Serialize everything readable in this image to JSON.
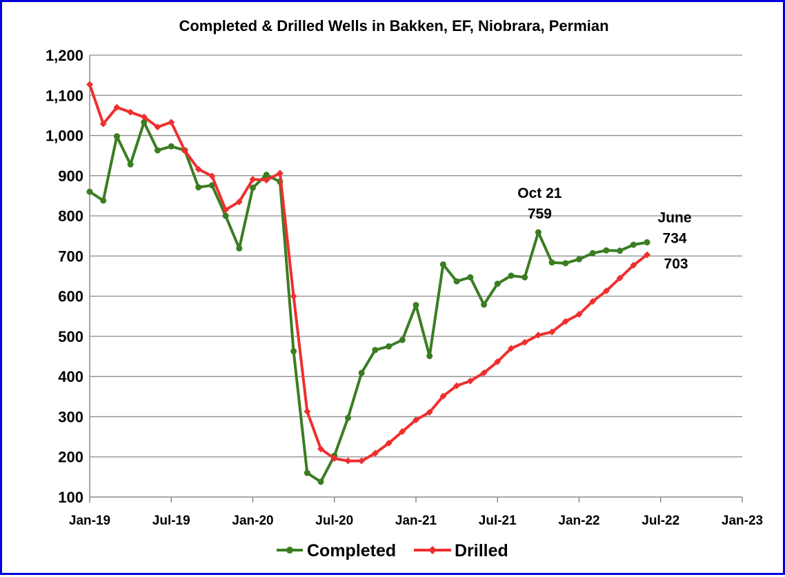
{
  "chart_data": {
    "type": "line",
    "title": "Completed & Drilled Wells in Bakken, EF, Niobrara, Permian",
    "xlabel": "",
    "ylabel": "",
    "ylim": [
      100,
      1200
    ],
    "yticks": [
      "100",
      "200",
      "300",
      "400",
      "500",
      "600",
      "700",
      "800",
      "900",
      "1,000",
      "1,100",
      "1,200"
    ],
    "xlim": [
      "2019-01",
      "2023-01"
    ],
    "xticks": [
      "Jan-19",
      "Jul-19",
      "Jan-20",
      "Jul-20",
      "Jan-21",
      "Jul-21",
      "Jan-22",
      "Jul-22",
      "Jan-23"
    ],
    "grid": "horizontal",
    "legend_position": "bottom",
    "x": [
      "2019-01",
      "2019-02",
      "2019-03",
      "2019-04",
      "2019-05",
      "2019-06",
      "2019-07",
      "2019-08",
      "2019-09",
      "2019-10",
      "2019-11",
      "2019-12",
      "2020-01",
      "2020-02",
      "2020-03",
      "2020-04",
      "2020-05",
      "2020-06",
      "2020-07",
      "2020-08",
      "2020-09",
      "2020-10",
      "2020-11",
      "2020-12",
      "2021-01",
      "2021-02",
      "2021-03",
      "2021-04",
      "2021-05",
      "2021-06",
      "2021-07",
      "2021-08",
      "2021-09",
      "2021-10",
      "2021-11",
      "2021-12",
      "2022-01",
      "2022-02",
      "2022-03",
      "2022-04",
      "2022-05",
      "2022-06"
    ],
    "series": [
      {
        "name": "Completed",
        "color": "#3a7d22",
        "values": [
          860,
          838,
          998,
          928,
          1033,
          963,
          973,
          963,
          871,
          876,
          800,
          719,
          870,
          902,
          885,
          463,
          160,
          138,
          203,
          297,
          409,
          466,
          475,
          491,
          578,
          451,
          679,
          637,
          647,
          579,
          631,
          651,
          647,
          759,
          684,
          682,
          692,
          707,
          714,
          713,
          728,
          734
        ]
      },
      {
        "name": "Drilled",
        "color": "#ef2f2f",
        "values": [
          1127,
          1029,
          1070,
          1058,
          1046,
          1021,
          1033,
          962,
          916,
          899,
          815,
          835,
          891,
          889,
          906,
          600,
          313,
          220,
          196,
          190,
          190,
          209,
          234,
          263,
          292,
          311,
          351,
          377,
          389,
          409,
          437,
          470,
          485,
          503,
          511,
          537,
          555,
          587,
          613,
          645,
          677,
          703
        ]
      }
    ],
    "annotations": [
      {
        "line1": "Oct 21",
        "line2": "759",
        "x": "2021-10",
        "y": 759
      },
      {
        "line1": "June",
        "line2": "734",
        "x": "2022-06",
        "y": 734
      },
      {
        "line1": "703",
        "line2": "",
        "x": "2022-06",
        "y": 703
      }
    ]
  }
}
